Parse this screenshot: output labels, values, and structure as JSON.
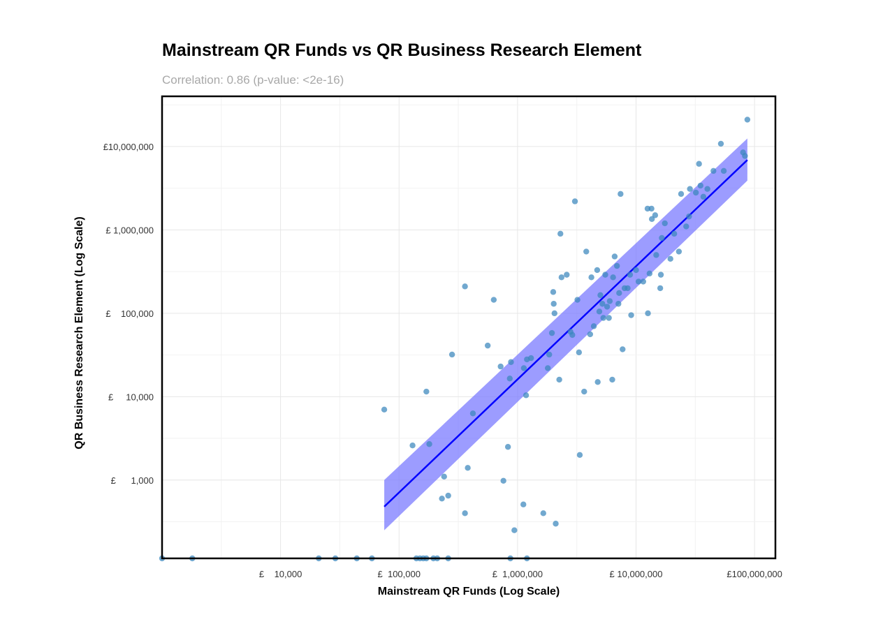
{
  "chart_data": {
    "type": "scatter",
    "title": "Mainstream QR Funds vs QR Business Research Element",
    "subtitle": "Correlation: 0.86 (p-value: <2e-16)",
    "xlabel": "Mainstream QR Funds (Log Scale)",
    "ylabel": "QR Business Research Element (Log Scale)",
    "x_scale": "log10",
    "y_scale": "log10",
    "xlim": [
      1000,
      150000000
    ],
    "ylim": [
      115,
      40000000
    ],
    "grid": true,
    "x_ticks": [
      {
        "value": 10000,
        "label": "£    10,000"
      },
      {
        "value": 100000,
        "label": "£  100,000"
      },
      {
        "value": 1000000,
        "label": "£  1,000,000"
      },
      {
        "value": 10000000,
        "label": "£ 10,000,000"
      },
      {
        "value": 100000000,
        "label": "£100,000,000"
      }
    ],
    "y_ticks": [
      {
        "value": 1000,
        "label": "£      1,000"
      },
      {
        "value": 10000,
        "label": "£     10,000"
      },
      {
        "value": 100000,
        "label": "£    100,000"
      },
      {
        "value": 1000000,
        "label": "£ 1,000,000"
      },
      {
        "value": 10000000,
        "label": "£10,000,000"
      }
    ],
    "point_color": "#3a87bd",
    "fit_line_color": "#0000ff",
    "confidence_band_color": "#7b7bff",
    "fit_line": {
      "x": [
        75000,
        87000000
      ],
      "y": [
        480,
        6900000
      ]
    },
    "confidence_band": {
      "x": [
        75000,
        87000000
      ],
      "lower": [
        250,
        3900000
      ],
      "upper": [
        1000,
        12500000
      ]
    },
    "series": [
      {
        "points": [
          {
            "x": 1000,
            "y": 115
          },
          {
            "x": 1800,
            "y": 115
          },
          {
            "x": 21000,
            "y": 115
          },
          {
            "x": 29000,
            "y": 115
          },
          {
            "x": 44000,
            "y": 115
          },
          {
            "x": 59000,
            "y": 115
          },
          {
            "x": 140000,
            "y": 115
          },
          {
            "x": 150000,
            "y": 115
          },
          {
            "x": 160000,
            "y": 115
          },
          {
            "x": 170000,
            "y": 115
          },
          {
            "x": 195000,
            "y": 115
          },
          {
            "x": 210000,
            "y": 115
          },
          {
            "x": 260000,
            "y": 115
          },
          {
            "x": 870000,
            "y": 115
          },
          {
            "x": 1200000,
            "y": 115
          },
          {
            "x": 75000,
            "y": 7000
          },
          {
            "x": 130000,
            "y": 2600
          },
          {
            "x": 170000,
            "y": 11500
          },
          {
            "x": 180000,
            "y": 2700
          },
          {
            "x": 230000,
            "y": 600
          },
          {
            "x": 240000,
            "y": 1100
          },
          {
            "x": 260000,
            "y": 650
          },
          {
            "x": 280000,
            "y": 32000
          },
          {
            "x": 360000,
            "y": 210000
          },
          {
            "x": 380000,
            "y": 1400
          },
          {
            "x": 360000,
            "y": 400
          },
          {
            "x": 420000,
            "y": 6300
          },
          {
            "x": 560000,
            "y": 41000
          },
          {
            "x": 630000,
            "y": 145000
          },
          {
            "x": 720000,
            "y": 23000
          },
          {
            "x": 760000,
            "y": 980
          },
          {
            "x": 830000,
            "y": 2500
          },
          {
            "x": 860000,
            "y": 16500
          },
          {
            "x": 880000,
            "y": 26000
          },
          {
            "x": 940000,
            "y": 250
          },
          {
            "x": 1120000,
            "y": 510
          },
          {
            "x": 1130000,
            "y": 22000
          },
          {
            "x": 1180000,
            "y": 10400
          },
          {
            "x": 1200000,
            "y": 28000
          },
          {
            "x": 1300000,
            "y": 29000
          },
          {
            "x": 1650000,
            "y": 400
          },
          {
            "x": 1800000,
            "y": 22000
          },
          {
            "x": 1850000,
            "y": 32000
          },
          {
            "x": 1950000,
            "y": 58000
          },
          {
            "x": 2000000,
            "y": 180000
          },
          {
            "x": 2020000,
            "y": 130000
          },
          {
            "x": 2050000,
            "y": 100000
          },
          {
            "x": 2100000,
            "y": 300
          },
          {
            "x": 2250000,
            "y": 16000
          },
          {
            "x": 2300000,
            "y": 900000
          },
          {
            "x": 2350000,
            "y": 270000
          },
          {
            "x": 2600000,
            "y": 290000
          },
          {
            "x": 2800000,
            "y": 60000
          },
          {
            "x": 2900000,
            "y": 55000
          },
          {
            "x": 3050000,
            "y": 2200000
          },
          {
            "x": 3200000,
            "y": 145000
          },
          {
            "x": 3300000,
            "y": 34000
          },
          {
            "x": 3350000,
            "y": 2000
          },
          {
            "x": 3650000,
            "y": 11500
          },
          {
            "x": 3800000,
            "y": 550000
          },
          {
            "x": 4100000,
            "y": 56000
          },
          {
            "x": 4200000,
            "y": 270000
          },
          {
            "x": 4400000,
            "y": 70000
          },
          {
            "x": 4700000,
            "y": 330000
          },
          {
            "x": 4750000,
            "y": 15000
          },
          {
            "x": 4900000,
            "y": 105000
          },
          {
            "x": 5000000,
            "y": 165000
          },
          {
            "x": 5200000,
            "y": 130000
          },
          {
            "x": 5300000,
            "y": 88000
          },
          {
            "x": 5500000,
            "y": 290000
          },
          {
            "x": 5700000,
            "y": 120000
          },
          {
            "x": 5900000,
            "y": 88000
          },
          {
            "x": 6000000,
            "y": 140000
          },
          {
            "x": 6300000,
            "y": 16000
          },
          {
            "x": 6400000,
            "y": 270000
          },
          {
            "x": 6600000,
            "y": 480000
          },
          {
            "x": 6900000,
            "y": 370000
          },
          {
            "x": 7100000,
            "y": 130000
          },
          {
            "x": 7200000,
            "y": 175000
          },
          {
            "x": 7400000,
            "y": 2700000
          },
          {
            "x": 7700000,
            "y": 37000
          },
          {
            "x": 8000000,
            "y": 200000
          },
          {
            "x": 8500000,
            "y": 200000
          },
          {
            "x": 8900000,
            "y": 290000
          },
          {
            "x": 9100000,
            "y": 95000
          },
          {
            "x": 10000000,
            "y": 330000
          },
          {
            "x": 10500000,
            "y": 240000
          },
          {
            "x": 11500000,
            "y": 240000
          },
          {
            "x": 12500000,
            "y": 1800000
          },
          {
            "x": 12600000,
            "y": 100000
          },
          {
            "x": 13000000,
            "y": 300000
          },
          {
            "x": 13500000,
            "y": 1800000
          },
          {
            "x": 13600000,
            "y": 1350000
          },
          {
            "x": 14500000,
            "y": 1500000
          },
          {
            "x": 14800000,
            "y": 500000
          },
          {
            "x": 16000000,
            "y": 200000
          },
          {
            "x": 16200000,
            "y": 290000
          },
          {
            "x": 16500000,
            "y": 800000
          },
          {
            "x": 17500000,
            "y": 1200000
          },
          {
            "x": 19500000,
            "y": 450000
          },
          {
            "x": 21000000,
            "y": 900000
          },
          {
            "x": 23000000,
            "y": 550000
          },
          {
            "x": 24000000,
            "y": 2700000
          },
          {
            "x": 26500000,
            "y": 1100000
          },
          {
            "x": 28000000,
            "y": 1450000
          },
          {
            "x": 28500000,
            "y": 3100000
          },
          {
            "x": 32000000,
            "y": 2800000
          },
          {
            "x": 34000000,
            "y": 6200000
          },
          {
            "x": 35000000,
            "y": 3400000
          },
          {
            "x": 37000000,
            "y": 2500000
          },
          {
            "x": 40000000,
            "y": 3100000
          },
          {
            "x": 45000000,
            "y": 5100000
          },
          {
            "x": 52000000,
            "y": 10800000
          },
          {
            "x": 55000000,
            "y": 5100000
          },
          {
            "x": 80000000,
            "y": 8500000
          },
          {
            "x": 83000000,
            "y": 7700000
          },
          {
            "x": 87000000,
            "y": 21000000
          }
        ]
      }
    ]
  }
}
